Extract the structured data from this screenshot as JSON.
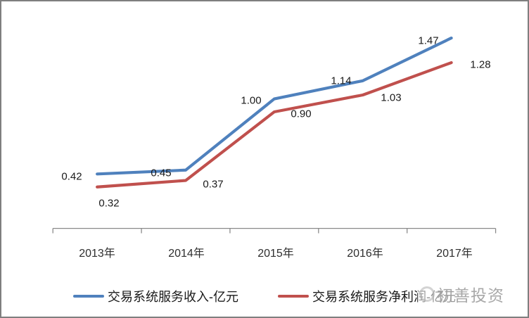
{
  "watermark": {
    "text": "初善投资"
  },
  "chart_data": {
    "type": "line",
    "categories": [
      "2013年",
      "2014年",
      "2015年",
      "2016年",
      "2017年"
    ],
    "series": [
      {
        "name": "交易系统服务收入-亿元",
        "color": "#4F81BD",
        "values": [
          0.42,
          0.45,
          1.0,
          1.14,
          1.47
        ]
      },
      {
        "name": "交易系统服务净利润-亿元",
        "color": "#C0504D",
        "values": [
          0.32,
          0.37,
          0.9,
          1.03,
          1.28
        ]
      }
    ],
    "data_labels": [
      [
        "0.42",
        "0.45",
        "1.00",
        "1.14",
        "1.47"
      ],
      [
        "0.32",
        "0.37",
        "0.90",
        "1.03",
        "1.28"
      ]
    ],
    "title": "",
    "xlabel": "",
    "ylabel": "",
    "ylim": [
      0,
      1.6
    ],
    "grid": false,
    "legend_position": "bottom",
    "axis_color": "#8a8a8a",
    "data_label_color": "#1a1a1a"
  }
}
